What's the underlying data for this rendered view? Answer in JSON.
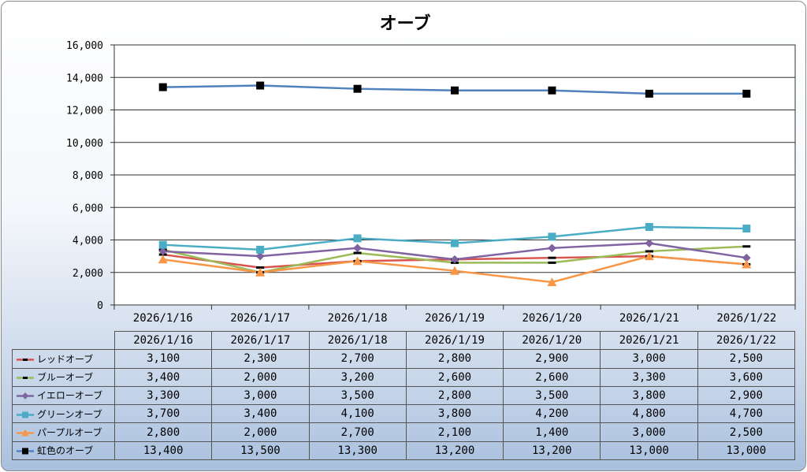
{
  "chart_data": {
    "type": "line",
    "title": "オーブ",
    "categories": [
      "2026/1/16",
      "2026/1/17",
      "2026/1/18",
      "2026/1/19",
      "2026/1/20",
      "2026/1/21",
      "2026/1/22"
    ],
    "ylim": [
      0,
      16000
    ],
    "yticks": [
      "16,000",
      "14,000",
      "12,000",
      "10,000",
      "8,000",
      "6,000",
      "4,000",
      "2,000",
      "0"
    ],
    "grid": true,
    "legend": "data-table",
    "series": [
      {
        "name": "レッドオーブ",
        "color": "#d9534f",
        "marker": "dash",
        "values": [
          3100,
          2300,
          2700,
          2800,
          2900,
          3000,
          2500
        ],
        "labels": [
          "3,100",
          "2,300",
          "2,700",
          "2,800",
          "2,900",
          "3,000",
          "2,500"
        ]
      },
      {
        "name": "ブルーオーブ",
        "color": "#9bbb59",
        "marker": "dash",
        "values": [
          3400,
          2000,
          3200,
          2600,
          2600,
          3300,
          3600
        ],
        "labels": [
          "3,400",
          "2,000",
          "3,200",
          "2,600",
          "2,600",
          "3,300",
          "3,600"
        ]
      },
      {
        "name": "イエローオーブ",
        "color": "#8064a2",
        "marker": "diamond",
        "values": [
          3300,
          3000,
          3500,
          2800,
          3500,
          3800,
          2900
        ],
        "labels": [
          "3,300",
          "3,000",
          "3,500",
          "2,800",
          "3,500",
          "3,800",
          "2,900"
        ]
      },
      {
        "name": "グリーンオーブ",
        "color": "#4bacc6",
        "marker": "square",
        "values": [
          3700,
          3400,
          4100,
          3800,
          4200,
          4800,
          4700
        ],
        "labels": [
          "3,700",
          "3,400",
          "4,100",
          "3,800",
          "4,200",
          "4,800",
          "4,700"
        ]
      },
      {
        "name": "パープルオーブ",
        "color": "#f79646",
        "marker": "triangle",
        "values": [
          2800,
          2000,
          2700,
          2100,
          1400,
          3000,
          2500
        ],
        "labels": [
          "2,800",
          "2,000",
          "2,700",
          "2,100",
          "1,400",
          "3,000",
          "2,500"
        ]
      },
      {
        "name": "虹色のオーブ",
        "color": "#4f81bd",
        "marker": "blacksquare",
        "values": [
          13400,
          13500,
          13300,
          13200,
          13200,
          13000,
          13000
        ],
        "labels": [
          "13,400",
          "13,500",
          "13,300",
          "13,200",
          "13,200",
          "13,000",
          "13,000"
        ]
      }
    ]
  }
}
